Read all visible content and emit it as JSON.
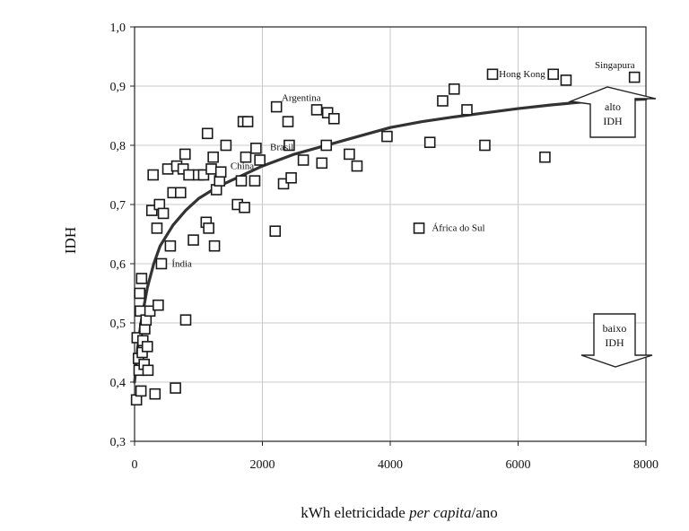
{
  "chart_data": {
    "type": "scatter",
    "title": "",
    "xlabel_parts": {
      "pre": "kWh eletricidade ",
      "italic": "per capita",
      "post": "/ano"
    },
    "ylabel": "IDH",
    "xlim": [
      0,
      8000
    ],
    "ylim": [
      0.3,
      1.0
    ],
    "x_ticks": [
      0,
      2000,
      4000,
      6000,
      8000
    ],
    "x_tick_labels": [
      "0",
      "2000",
      "4000",
      "6000",
      "8000"
    ],
    "y_ticks": [
      0.3,
      0.4,
      0.5,
      0.6,
      0.7,
      0.8,
      0.9,
      1.0
    ],
    "y_tick_labels": [
      "0,3",
      "0,4",
      "0,5",
      "0,6",
      "0,7",
      "0,8",
      "0,9",
      "1,0"
    ],
    "grid": true,
    "points": [
      {
        "x": 30,
        "y": 0.37
      },
      {
        "x": 40,
        "y": 0.475
      },
      {
        "x": 60,
        "y": 0.44
      },
      {
        "x": 70,
        "y": 0.42
      },
      {
        "x": 80,
        "y": 0.55
      },
      {
        "x": 90,
        "y": 0.52
      },
      {
        "x": 100,
        "y": 0.385
      },
      {
        "x": 110,
        "y": 0.575
      },
      {
        "x": 120,
        "y": 0.45
      },
      {
        "x": 130,
        "y": 0.47
      },
      {
        "x": 150,
        "y": 0.43
      },
      {
        "x": 160,
        "y": 0.49
      },
      {
        "x": 180,
        "y": 0.505
      },
      {
        "x": 200,
        "y": 0.46
      },
      {
        "x": 210,
        "y": 0.42
      },
      {
        "x": 240,
        "y": 0.52
      },
      {
        "x": 270,
        "y": 0.69
      },
      {
        "x": 290,
        "y": 0.75
      },
      {
        "x": 320,
        "y": 0.38
      },
      {
        "x": 350,
        "y": 0.66
      },
      {
        "x": 370,
        "y": 0.53
      },
      {
        "x": 390,
        "y": 0.7
      },
      {
        "x": 420,
        "y": 0.6
      },
      {
        "x": 450,
        "y": 0.685
      },
      {
        "x": 520,
        "y": 0.76
      },
      {
        "x": 560,
        "y": 0.63
      },
      {
        "x": 600,
        "y": 0.72
      },
      {
        "x": 640,
        "y": 0.39
      },
      {
        "x": 660,
        "y": 0.765
      },
      {
        "x": 720,
        "y": 0.72
      },
      {
        "x": 760,
        "y": 0.76
      },
      {
        "x": 790,
        "y": 0.785
      },
      {
        "x": 800,
        "y": 0.505
      },
      {
        "x": 850,
        "y": 0.75
      },
      {
        "x": 920,
        "y": 0.64
      },
      {
        "x": 1000,
        "y": 0.75
      },
      {
        "x": 1080,
        "y": 0.75
      },
      {
        "x": 1120,
        "y": 0.67
      },
      {
        "x": 1140,
        "y": 0.82
      },
      {
        "x": 1160,
        "y": 0.66
      },
      {
        "x": 1200,
        "y": 0.76
      },
      {
        "x": 1230,
        "y": 0.78
      },
      {
        "x": 1250,
        "y": 0.63
      },
      {
        "x": 1280,
        "y": 0.725
      },
      {
        "x": 1330,
        "y": 0.74
      },
      {
        "x": 1350,
        "y": 0.755
      },
      {
        "x": 1430,
        "y": 0.8
      },
      {
        "x": 1610,
        "y": 0.7
      },
      {
        "x": 1670,
        "y": 0.74
      },
      {
        "x": 1700,
        "y": 0.84
      },
      {
        "x": 1720,
        "y": 0.695
      },
      {
        "x": 1740,
        "y": 0.78
      },
      {
        "x": 1770,
        "y": 0.84
      },
      {
        "x": 1880,
        "y": 0.74
      },
      {
        "x": 1900,
        "y": 0.795
      },
      {
        "x": 1960,
        "y": 0.775
      },
      {
        "x": 2200,
        "y": 0.655
      },
      {
        "x": 2220,
        "y": 0.865
      },
      {
        "x": 2330,
        "y": 0.735
      },
      {
        "x": 2400,
        "y": 0.84
      },
      {
        "x": 2420,
        "y": 0.8
      },
      {
        "x": 2450,
        "y": 0.745
      },
      {
        "x": 2640,
        "y": 0.775
      },
      {
        "x": 2850,
        "y": 0.86
      },
      {
        "x": 2930,
        "y": 0.77
      },
      {
        "x": 3000,
        "y": 0.8
      },
      {
        "x": 3020,
        "y": 0.855
      },
      {
        "x": 3120,
        "y": 0.845
      },
      {
        "x": 3360,
        "y": 0.785
      },
      {
        "x": 3480,
        "y": 0.765
      },
      {
        "x": 3950,
        "y": 0.815
      },
      {
        "x": 4450,
        "y": 0.66
      },
      {
        "x": 4620,
        "y": 0.805
      },
      {
        "x": 4820,
        "y": 0.875
      },
      {
        "x": 5000,
        "y": 0.895
      },
      {
        "x": 5200,
        "y": 0.86
      },
      {
        "x": 5480,
        "y": 0.8
      },
      {
        "x": 5600,
        "y": 0.92
      },
      {
        "x": 6420,
        "y": 0.78
      },
      {
        "x": 6550,
        "y": 0.92
      },
      {
        "x": 6750,
        "y": 0.91
      },
      {
        "x": 7820,
        "y": 0.915
      }
    ],
    "trend_line": {
      "x": [
        0,
        50,
        100,
        150,
        200,
        300,
        400,
        600,
        800,
        1000,
        1300,
        1600,
        2000,
        2500,
        3000,
        3500,
        4000,
        4500,
        5000,
        5500,
        6000,
        6500,
        7000,
        7500,
        8000
      ],
      "y": [
        0.4,
        0.46,
        0.5,
        0.53,
        0.56,
        0.6,
        0.63,
        0.665,
        0.69,
        0.71,
        0.73,
        0.745,
        0.765,
        0.785,
        0.8,
        0.815,
        0.83,
        0.84,
        0.848,
        0.855,
        0.862,
        0.868,
        0.873,
        0.876,
        0.878
      ]
    },
    "annotations": [
      {
        "text": "Argentina",
        "x": 2300,
        "y": 0.875
      },
      {
        "text": "Hong Kong",
        "x": 5700,
        "y": 0.915
      },
      {
        "text": "Singapura",
        "x": 7200,
        "y": 0.93
      },
      {
        "text": "China",
        "x": 1500,
        "y": 0.76
      },
      {
        "text": "Brasil",
        "x": 2120,
        "y": 0.792
      },
      {
        "text": "Índia",
        "x": 580,
        "y": 0.595
      },
      {
        "text": "África do Sul",
        "x": 4650,
        "y": 0.655
      }
    ],
    "arrows": [
      {
        "direction": "up",
        "lines": [
          "alto",
          "IDH"
        ]
      },
      {
        "direction": "down",
        "lines": [
          "baixo",
          "IDH"
        ]
      }
    ]
  }
}
